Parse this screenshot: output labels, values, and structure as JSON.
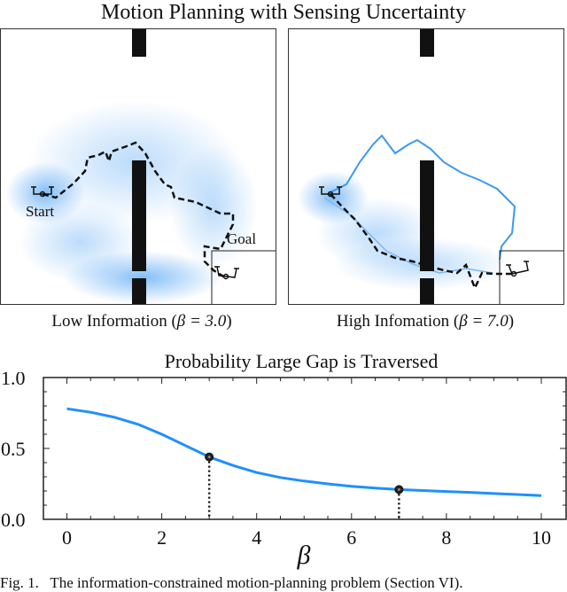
{
  "figure": {
    "title": "Motion Planning with Sensing Uncertainty",
    "panels": [
      {
        "caption_prefix": "Low Information (",
        "beta_text": "β = 3.0",
        "caption_suffix": ")",
        "start_label": "Start",
        "goal_label": "Goal"
      },
      {
        "caption_prefix": "High Infomation (",
        "beta_text": "β = 7.0",
        "caption_suffix": ")"
      }
    ],
    "caption": "Fig. 1.   The information-constrained motion-planning problem (Section VI)."
  },
  "colors": {
    "heat": "#1e88f0",
    "curve": "#1e90ff",
    "wall": "#111111"
  },
  "chart_data": {
    "type": "line",
    "title": "Probability Large Gap is Traversed",
    "xlabel": "β",
    "ylabel": "",
    "xlim": [
      -0.4,
      10.5
    ],
    "ylim": [
      0,
      1.0
    ],
    "xticks": [
      "0",
      "2",
      "4",
      "6",
      "8",
      "10"
    ],
    "yticks": [
      "0.0",
      "0.5",
      "1.0"
    ],
    "grid": false,
    "series": [
      {
        "x": [
          0,
          0.5,
          1,
          1.5,
          2,
          2.5,
          3,
          3.5,
          4,
          4.5,
          5,
          5.5,
          6,
          6.5,
          7,
          7.5,
          8,
          8.5,
          9,
          9.5,
          10
        ],
        "y": [
          0.78,
          0.755,
          0.72,
          0.67,
          0.6,
          0.52,
          0.44,
          0.38,
          0.33,
          0.295,
          0.27,
          0.25,
          0.233,
          0.22,
          0.21,
          0.203,
          0.196,
          0.19,
          0.182,
          0.175,
          0.167
        ]
      }
    ],
    "markers": [
      {
        "x": 3,
        "y": 0.44
      },
      {
        "x": 7,
        "y": 0.21
      }
    ]
  }
}
